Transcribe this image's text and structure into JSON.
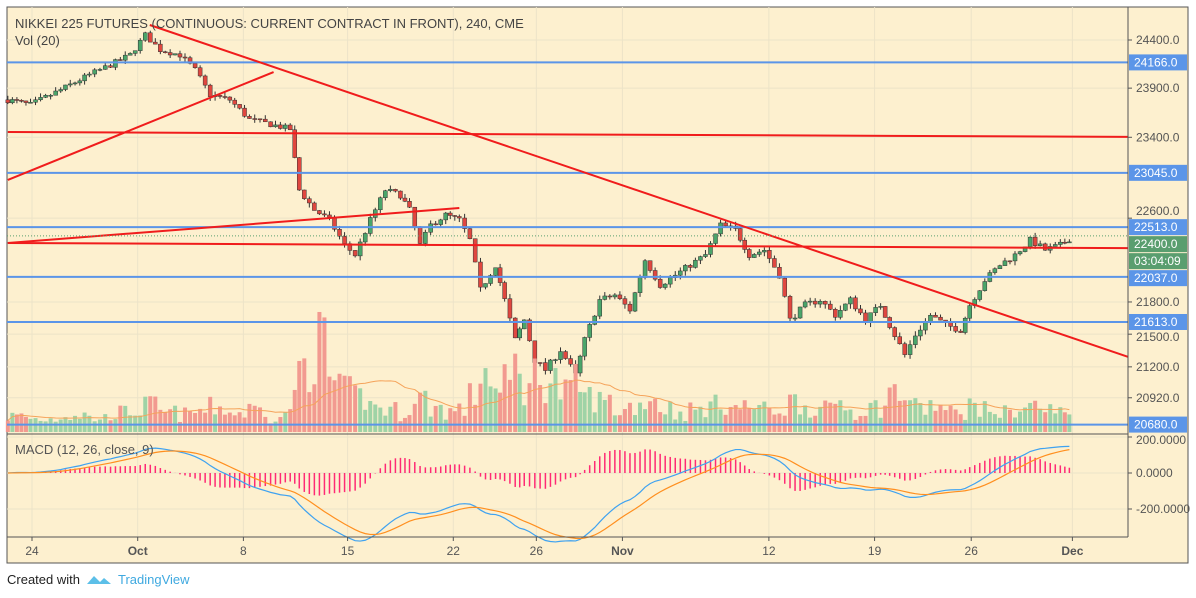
{
  "chart_data": {
    "type": "candlestick",
    "title": "NIKKEI 225 FUTURES (CONTINUOUS: CURRENT CONTRACT IN FRONT), 240, CME",
    "volume_label": "Vol (20)",
    "macd_label": "MACD (12, 26, close, 9)",
    "x_unit": "days since Sep 24",
    "x_range": [
      -1.6,
      72.6
    ],
    "price_range": [
      20600,
      24560
    ],
    "price_scale": "log",
    "price_ticks": [
      "24400.0",
      "23900.0",
      "23400.0",
      "22600.0",
      "21800.0",
      "21500.0",
      "21200.0",
      "20920.0"
    ],
    "macd_ticks": [
      "200.0000",
      "0.0000",
      "-200.0000"
    ],
    "time_ticks": [
      {
        "label": "24",
        "day": 0,
        "bold": false
      },
      {
        "label": "Oct",
        "day": 7,
        "bold": true
      },
      {
        "label": "8",
        "day": 14,
        "bold": false
      },
      {
        "label": "15",
        "day": 20.9,
        "bold": false
      },
      {
        "label": "22",
        "day": 27.9,
        "bold": false
      },
      {
        "label": "26",
        "day": 33.4,
        "bold": false
      },
      {
        "label": "Nov",
        "day": 39.1,
        "bold": true
      },
      {
        "label": "12",
        "day": 48.8,
        "bold": false
      },
      {
        "label": "19",
        "day": 55.8,
        "bold": false
      },
      {
        "label": "26",
        "day": 62.2,
        "bold": false
      },
      {
        "label": "Dec",
        "day": 68.9,
        "bold": true
      }
    ],
    "close_path": [
      [
        -1.6,
        23780
      ],
      [
        -0.1,
        23730
      ],
      [
        1.9,
        23882
      ],
      [
        3.8,
        24037
      ],
      [
        5.2,
        24140
      ],
      [
        6.5,
        24244
      ],
      [
        7.5,
        24453
      ],
      [
        8.5,
        24296
      ],
      [
        9.8,
        24244
      ],
      [
        10.8,
        24088
      ],
      [
        11.8,
        23831
      ],
      [
        13.1,
        23780
      ],
      [
        14.4,
        23580
      ],
      [
        15.8,
        23531
      ],
      [
        17.1,
        23482
      ],
      [
        17.7,
        22875
      ],
      [
        18.7,
        22680
      ],
      [
        19.7,
        22582
      ],
      [
        20.7,
        22340
      ],
      [
        21.4,
        22245
      ],
      [
        22.4,
        22582
      ],
      [
        23.4,
        22875
      ],
      [
        24.4,
        22826
      ],
      [
        25.0,
        22680
      ],
      [
        25.7,
        22340
      ],
      [
        26.4,
        22533
      ],
      [
        27.4,
        22631
      ],
      [
        28.3,
        22582
      ],
      [
        29.0,
        22388
      ],
      [
        29.7,
        21913
      ],
      [
        30.7,
        22150
      ],
      [
        31.3,
        21819
      ],
      [
        32.0,
        21448
      ],
      [
        32.6,
        21633
      ],
      [
        33.3,
        21262
      ],
      [
        34.0,
        21172
      ],
      [
        35.0,
        21355
      ],
      [
        36.0,
        21125
      ],
      [
        36.6,
        21448
      ],
      [
        37.6,
        21819
      ],
      [
        38.6,
        21865
      ],
      [
        39.6,
        21726
      ],
      [
        40.6,
        22197
      ],
      [
        41.6,
        21960
      ],
      [
        42.6,
        22053
      ],
      [
        43.6,
        22150
      ],
      [
        44.6,
        22245
      ],
      [
        45.6,
        22533
      ],
      [
        46.6,
        22485
      ],
      [
        47.5,
        22245
      ],
      [
        48.5,
        22294
      ],
      [
        49.5,
        22053
      ],
      [
        50.2,
        21633
      ],
      [
        51.2,
        21772
      ],
      [
        52.2,
        21819
      ],
      [
        53.2,
        21677
      ],
      [
        54.2,
        21819
      ],
      [
        55.2,
        21633
      ],
      [
        56.2,
        21772
      ],
      [
        56.8,
        21584
      ],
      [
        57.8,
        21309
      ],
      [
        58.5,
        21492
      ],
      [
        59.5,
        21677
      ],
      [
        60.5,
        21584
      ],
      [
        61.5,
        21540
      ],
      [
        62.1,
        21772
      ],
      [
        63.1,
        22006
      ],
      [
        64.1,
        22150
      ],
      [
        65.1,
        22245
      ],
      [
        66.1,
        22388
      ],
      [
        67.1,
        22294
      ],
      [
        68.1,
        22340
      ],
      [
        68.7,
        22400
      ]
    ],
    "volume": [
      18,
      15,
      20,
      16,
      22,
      25,
      30,
      22,
      20,
      24,
      28,
      22,
      26,
      18,
      35,
      75,
      100,
      60,
      45,
      40,
      30,
      25,
      22,
      30,
      38,
      28,
      24,
      26,
      40,
      70,
      45,
      55,
      75,
      50,
      65,
      60,
      45,
      55,
      40,
      35,
      25,
      30,
      40,
      28,
      22,
      25,
      30,
      35,
      28,
      30,
      25,
      28,
      35,
      30,
      25,
      35,
      25,
      28,
      30,
      45,
      40,
      28,
      30,
      22,
      25,
      30,
      25,
      22,
      28,
      30,
      25,
      22,
      20
    ],
    "horizontal_levels": [
      {
        "price": 24166.0,
        "label": "24166.0",
        "color": "#5b95e8"
      },
      {
        "price": 23045.0,
        "label": "23045.0",
        "color": "#5b95e8"
      },
      {
        "price": 22513.0,
        "label": "22513.0",
        "color": "#5b95e8"
      },
      {
        "price": 22037.0,
        "label": "22037.0",
        "color": "#5b95e8"
      },
      {
        "price": 21613.0,
        "label": "21613.0",
        "color": "#5b95e8"
      },
      {
        "price": 20680.0,
        "label": "20680.0",
        "color": "#5b95e8"
      }
    ],
    "trend_lines": [
      {
        "from": [
          -1.6,
          23453
        ],
        "to": [
          72.6,
          23404
        ],
        "color": "#f01c1c"
      },
      {
        "from": [
          -1.6,
          22360
        ],
        "to": [
          72.6,
          22311
        ],
        "color": "#f01c1c"
      },
      {
        "from": [
          -1.6,
          22975
        ],
        "to": [
          16.0,
          24066
        ],
        "color": "#f01c1c"
      },
      {
        "from": [
          -1.6,
          22360
        ],
        "to": [
          28.3,
          22699
        ],
        "color": "#f01c1c"
      },
      {
        "from": [
          7.8,
          24558
        ],
        "to": [
          72.6,
          21291
        ],
        "color": "#f01c1c"
      }
    ],
    "last_price": {
      "value": 22400.0,
      "label": "22400.0",
      "countdown": "03:04:09",
      "color": "#5a9e6f"
    },
    "colors": {
      "up": "#4aa56a",
      "down": "#e0473f",
      "vol_up": "#9fd3a6",
      "vol_down": "#f29a90",
      "macd": "#3fa2f0",
      "signal": "#ff8f1f",
      "hist": "#ff2a75",
      "background": "#fdf0cf"
    }
  },
  "footer": {
    "created_with": "Created with",
    "brand": "TradingView"
  }
}
